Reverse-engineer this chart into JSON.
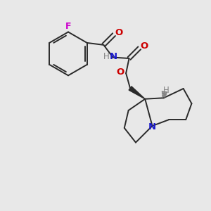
{
  "background_color": "#e8e8e8",
  "bond_color": "#2a2a2a",
  "N_color": "#1a1acc",
  "O_color": "#cc0000",
  "F_color": "#cc00cc",
  "H_color": "#808080",
  "figsize": [
    3.0,
    3.0
  ],
  "dpi": 100,
  "xlim": [
    0,
    10
  ],
  "ylim": [
    0,
    10
  ]
}
